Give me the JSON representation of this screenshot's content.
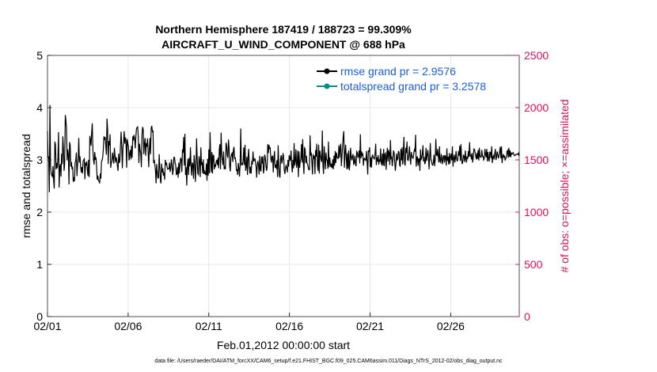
{
  "chart_data": {
    "type": "line",
    "title_line1": "Northern Hemisphere 187419 / 188723 = 99.309%",
    "title_line2": "AIRCRAFT_U_WIND_COMPONENT @ 688 hPa",
    "xlabel": "Feb.01,2012 00:00:00 start",
    "ylabel_left": "rmse and totalspread",
    "ylabel_right": "# of obs: o=possible; ×=assimilated",
    "footer": "data file: /Users/raeder/DAI/ATM_forcXX/CAM6_setup/f.e21.FHIST_BGC.f09_025.CAM6assim.011/Diags_NTrS_2012-02/obs_diag_output.nc",
    "xlim": [
      0,
      29.25
    ],
    "ylim_left": [
      0,
      5
    ],
    "ylim_right": [
      0,
      2500
    ],
    "x_ticks": [
      0,
      5,
      10,
      15,
      20,
      25
    ],
    "x_tick_labels": [
      "02/01",
      "02/06",
      "02/11",
      "02/16",
      "02/21",
      "02/26"
    ],
    "y_ticks_left": [
      0,
      1,
      2,
      3,
      4,
      5
    ],
    "y_tick_labels_left": [
      "0",
      "1",
      "2",
      "3",
      "4",
      "5"
    ],
    "y_ticks_right": [
      0,
      500,
      1000,
      1500,
      2000,
      2500
    ],
    "y_tick_labels_right": [
      "0",
      "500",
      "1000",
      "1500",
      "2000",
      "2500"
    ],
    "legend": {
      "location": "top-right"
    },
    "colors": {
      "rmse": "#000000",
      "spread": "#008b8b",
      "obs": "#d3135a",
      "legend_text": "#1a5fd6"
    },
    "series": [
      {
        "name": "rmse grand pr = 2.9576",
        "key": "rmse",
        "values": [
          3.55,
          3.04,
          3.05,
          2.38,
          4.05,
          2.89,
          2.74,
          2.7,
          2.68,
          2.88,
          2.6,
          2.45,
          3.35,
          3.29,
          2.82,
          2.94,
          2.84,
          3.05,
          3.53,
          2.47,
          2.86,
          2.92,
          2.68,
          3.12,
          2.92,
          3.45,
          3.22,
          2.79,
          2.93,
          3.86,
          3.76,
          3.6,
          2.99,
          3.2,
          3.11,
          2.53,
          3.34,
          3.28,
          2.87,
          2.96,
          2.82,
          2.87,
          2.58,
          2.67,
          2.59,
          2.95,
          2.98,
          3.14,
          2.69,
          2.91,
          3.02,
          3.42,
          2.95,
          3.07,
          2.88,
          2.76,
          2.86,
          2.74,
          2.97,
          3.0,
          3.02,
          2.63,
          2.93,
          2.91,
          2.97,
          2.81,
          2.69,
          3.0,
          2.67,
          3.46,
          3.38,
          3.27,
          3.53,
          3.7,
          3.19,
          3.0,
          2.91,
          3.15,
          3.0,
          3.05,
          2.88,
          2.62,
          2.7,
          2.61,
          2.59,
          2.55,
          2.74,
          2.64,
          2.97,
          2.99,
          3.05,
          3.2,
          3.45,
          3.38,
          3.44,
          3.27,
          3.1,
          3.79,
          3.58,
          2.92,
          3.36,
          3.28,
          3.49,
          2.85,
          2.94,
          2.97,
          3.14,
          3.04,
          2.93,
          3.23,
          3.09,
          2.95,
          3.05,
          2.99,
          2.88,
          2.79,
          3.12,
          2.94,
          2.99,
          3.28,
          3.54,
          3.25,
          2.84,
          3.23,
          3.35,
          3.55,
          3.31,
          3.43,
          3.36,
          2.85,
          3.4,
          3.31,
          3.25,
          2.99,
          3.11,
          3.19,
          3.01,
          3.27,
          3.04,
          3.45,
          3.37,
          3.48,
          3.41,
          3.22,
          3.43,
          3.6,
          3.62,
          3.63,
          3.44,
          2.94,
          3.31,
          3.18,
          3.13,
          2.86,
          3.46,
          3.63,
          3.59,
          3.11,
          3.31,
          3.42,
          3.08,
          3.32,
          3.25,
          3.41,
          3.17,
          2.86,
          3.2,
          3.42,
          3.11,
          3.61,
          3.65,
          3.54,
          3.55,
          2.94,
          3.0,
          2.9,
          2.79,
          2.55,
          2.92,
          2.77,
          2.65,
          2.66,
          3.11,
          2.87,
          2.61,
          2.55,
          2.93,
          2.76,
          2.84,
          2.7,
          2.76,
          2.62,
          3.0,
          2.92,
          2.95,
          2.86,
          2.82,
          2.83,
          2.83,
          2.95,
          2.77,
          2.84,
          3.01,
          2.9,
          2.71,
          2.81,
          3.05,
          3.05,
          2.94,
          2.9,
          2.72,
          2.73,
          2.86,
          2.66,
          2.95,
          2.74,
          2.91,
          3.04,
          3.01,
          2.77,
          3.2,
          3.14,
          3.44,
          2.89,
          3.5,
          2.71,
          2.86,
          2.51,
          2.88,
          3.02,
          2.71,
          3.04,
          2.88,
          3.24,
          2.88,
          2.7,
          2.95,
          2.91,
          2.64,
          3.09,
          2.95,
          2.58,
          2.84,
          3.41,
          3.03,
          2.74,
          2.72,
          3.07,
          2.99,
          2.67,
          3.24,
          2.92,
          2.94,
          2.74,
          3.01,
          2.73,
          2.78,
          2.74,
          2.71,
          2.93,
          2.6,
          3.02,
          2.7,
          3.2,
          2.74,
          3.53,
          3.05,
          2.76,
          3.15,
          2.74,
          3.09,
          3.08,
          2.82,
          2.9,
          2.88,
          2.97,
          3.0,
          2.9,
          3.04,
          2.84,
          3.2,
          3.3,
          2.82,
          3.52,
          3.12,
          3.0,
          2.9,
          3.16,
          2.82,
          2.88,
          2.82,
          3.33,
          3.27,
          3.09,
          3.04,
          3.39,
          3.23,
          2.88,
          2.78,
          3.05,
          3.11,
          3.13,
          2.96,
          3.19,
          3.25,
          3.03,
          3.04,
          2.96,
          2.79,
          2.82,
          2.71,
          2.94,
          2.84,
          2.68,
          2.92,
          3.6,
          2.91,
          2.93,
          2.9,
          2.99,
          3.24,
          2.9,
          3.29,
          2.79,
          2.87,
          3.06,
          2.71,
          3.05,
          3.21,
          2.86,
          2.74,
          2.87,
          2.74,
          2.98,
          2.91,
          3.16,
          2.98,
          2.99,
          3.03,
          2.96,
          2.87,
          2.66,
          2.91,
          2.98,
          2.89,
          2.72,
          3.08,
          2.81,
          2.78,
          3.06,
          2.93,
          3.07,
          2.74,
          2.82,
          3.1,
          3.05,
          2.91,
          2.79,
          2.86,
          3.3,
          3.13,
          3.29,
          3.22,
          3.23,
          3.03,
          2.95,
          3.07,
          3.07,
          2.76,
          3.04,
          3.17,
          2.85,
          2.91,
          2.83,
          2.99,
          2.67,
          3.28,
          2.91,
          2.7,
          2.66,
          3.03,
          3.09,
          2.93,
          3.01,
          3.13,
          3.04,
          2.8,
          2.73,
          2.85,
          2.89,
          2.84,
          2.76,
          3.0,
          2.87,
          3.09,
          3.04,
          2.98,
          3.18,
          2.91,
          2.76,
          3.0,
          2.84,
          3.32,
          2.89,
          2.98,
          3.2,
          2.85,
          2.93,
          3.18,
          2.67,
          3.16,
          2.85,
          2.98,
          3.03,
          3.3,
          2.95,
          3.4,
          2.94,
          2.73,
          3.23,
          3.21,
          2.94,
          3.08,
          2.93,
          2.92,
          2.86,
          2.81,
          2.81,
          3.47,
          3.08,
          3.14,
          2.94,
          2.72,
          3.11,
          3.02,
          3.08,
          2.73,
          3.19,
          3.06,
          3.31,
          2.89,
          2.79,
          3.29,
          2.74,
          3.18,
          3.09,
          3.01,
          2.96,
          3.56,
          2.89,
          2.73,
          3.26,
          3.05,
          2.82,
          3.14,
          3.0,
          2.99,
          2.83,
          3.35,
          2.86,
          3.05,
          2.92,
          2.86,
          2.93,
          2.84,
          3.01,
          2.82,
          3.08,
          2.89,
          3.17,
          2.94,
          3.14,
          3.06,
          3.03,
          3.03,
          3.28,
          3.04,
          3.23,
          3.31,
          2.88,
          3.07,
          3.27,
          3.44,
          3.55,
          2.85,
          3.12,
          3.29,
          3.04,
          2.82,
          3.13,
          2.83,
          3.18,
          2.8,
          2.93,
          3.23,
          3.06,
          2.99,
          3.07,
          3.11,
          2.92,
          2.94,
          3.08,
          2.91,
          2.88,
          3.16,
          3.14,
          3.05,
          3.07,
          3.18,
          2.93,
          3.49,
          3.03,
          3.16,
          3.09,
          3.11,
          2.89,
          3.02,
          3.03,
          3.0,
          2.99,
          3.17,
          2.95,
          2.72,
          3.18,
          3.15,
          3.24,
          2.86,
          3.05,
          2.85,
          3.06,
          3.1,
          3.04,
          3.03,
          3.02,
          3.13,
          3.31,
          2.9,
          3.05,
          2.97,
          3.09,
          2.91,
          3.01,
          2.96,
          3.22,
          2.93,
          2.91,
          3.12,
          2.89,
          3.21,
          2.88,
          3.11,
          3.13,
          2.81,
          3.06,
          3.23,
          2.97,
          3.19,
          3.13,
          2.9,
          3.38,
          3.03,
          3.05,
          2.88,
          3.01,
          3.18,
          3.14,
          2.96,
          2.79,
          2.92,
          3.12,
          3.0,
          3.02,
          3.17,
          3.14,
          2.9,
          2.87,
          3.21,
          2.99,
          3.24,
          2.91,
          3.15,
          3.44,
          2.95,
          2.89,
          3.23,
          3.13,
          3.35,
          3.0,
          2.99,
          3.09,
          3.26,
          3.05,
          2.91,
          3.15,
          3.08,
          3.04,
          3.03,
          3.12,
          3.19,
          3.16,
          3.48,
          2.87,
          3.02,
          3.07,
          2.89,
          3.02,
          3.02,
          2.79,
          3.2,
          3.01,
          3.03,
          3.11,
          3.28,
          2.97,
          3.06,
          2.92,
          2.95,
          3.23,
          2.98,
          3.09,
          3.19,
          3.05,
          2.82,
          3.06,
          3.32,
          3.01,
          2.98,
          2.91,
          2.9,
          2.95,
          3.1,
          2.88,
          3.0,
          3.4,
          3.09,
          3.08,
          3.21,
          3.07,
          2.95,
          3.26,
          2.97,
          2.95,
          3.11,
          3.0,
          2.92,
          3.07,
          3.08,
          2.95,
          3.09,
          3.05,
          2.89,
          3.22,
          2.98,
          3.06,
          2.91,
          3.13,
          2.93,
          3.06,
          3.12,
          2.99,
          3.26,
          2.87,
          3.03,
          3.1,
          2.95,
          3.03,
          3.17,
          3.01,
          2.97,
          3.04,
          3.17,
          3.08,
          3.27,
          2.98,
          3.3,
          3.02,
          2.92,
          2.97,
          3.1,
          3.06,
          2.96,
          3.18,
          3.03,
          2.95,
          3.07,
          3.02,
          3.17,
          3.06,
          3.34,
          3.08,
          3.09,
          3.01,
          3.13,
          2.95,
          3.04,
          3.21,
          3.2,
          3.14,
          3.08,
          3.01,
          3.13,
          3.02,
          3.19,
          2.99,
          3.23,
          3.07,
          3.05,
          3.05,
          3.19,
          3.07,
          3.07,
          3.0,
          3.03,
          3.21,
          3.11,
          3.05,
          3.21,
          2.97,
          3.15,
          3.03,
          2.97,
          3.15,
          3.14,
          3.03,
          3.26,
          2.94,
          3.05,
          3.08,
          3.01,
          3.12,
          3.21,
          3.0,
          3.05,
          3.16,
          3.1,
          3.03,
          3.08,
          3.16,
          3.25,
          3.03,
          3.26,
          2.94,
          3.06,
          3.11,
          3.04,
          3.08,
          2.99,
          3.03,
          3.06,
          3.16,
          3.18,
          3.04,
          3.23,
          3.06,
          3.18,
          3.05,
          3.14,
          3.11,
          3.12,
          3.14,
          3.11,
          3.08,
          3.09,
          3.09,
          3.11,
          3.11,
          3.11,
          3.1,
          3.13,
          3.07
        ]
      },
      {
        "name": "totalspread grand pr = 3.2578",
        "key": "spread",
        "values": []
      }
    ]
  }
}
